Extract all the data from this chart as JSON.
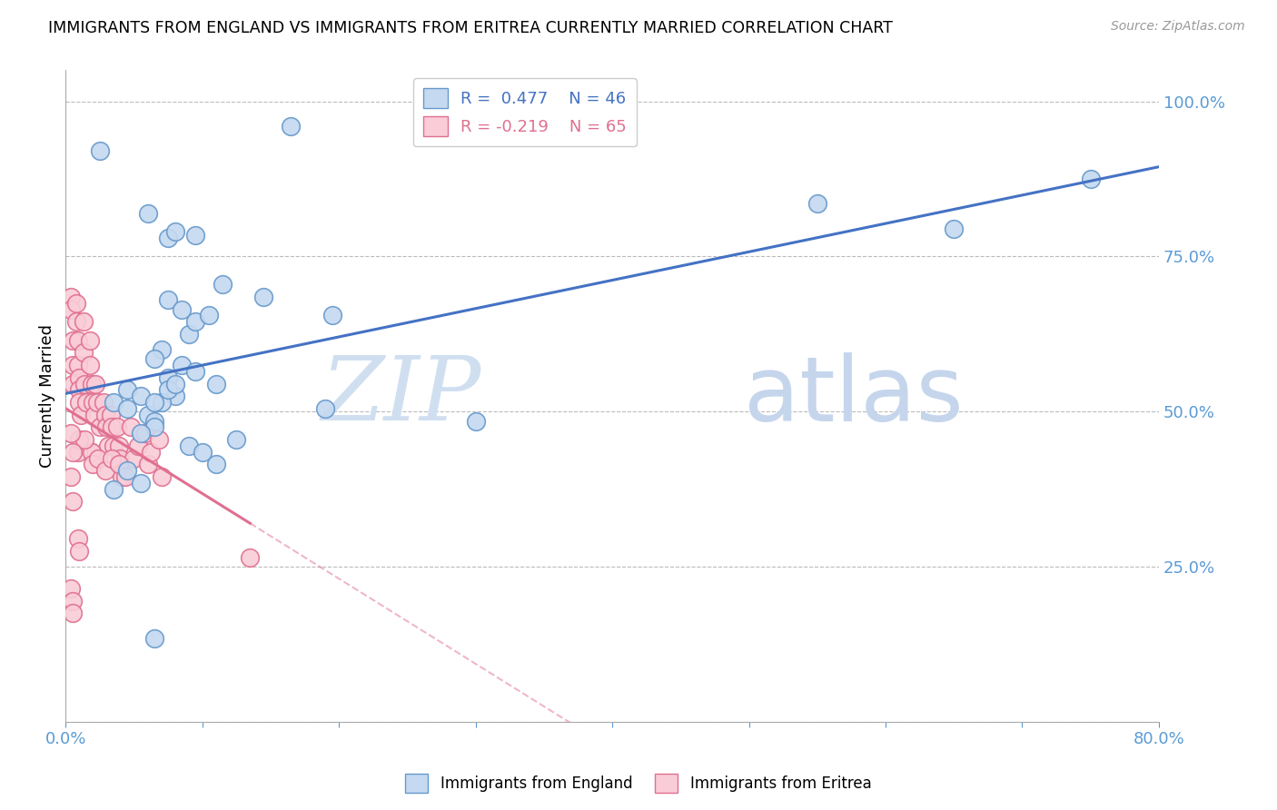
{
  "title": "IMMIGRANTS FROM ENGLAND VS IMMIGRANTS FROM ERITREA CURRENTLY MARRIED CORRELATION CHART",
  "source": "Source: ZipAtlas.com",
  "ylabel": "Currently Married",
  "y_ticks": [
    0.0,
    0.25,
    0.5,
    0.75,
    1.0
  ],
  "y_tick_labels": [
    "",
    "25.0%",
    "50.0%",
    "75.0%",
    "100.0%"
  ],
  "x_min": 0.0,
  "x_max": 0.8,
  "y_min": 0.0,
  "y_max": 1.05,
  "england_color": "#c5d9f0",
  "england_edge_color": "#6699cc",
  "eritrea_color": "#f9ccd8",
  "eritrea_edge_color": "#e07090",
  "england_line_color": "#4472C4",
  "eritrea_line_color": "#e07090",
  "legend_R_england": "R =  0.477",
  "legend_N_england": "N = 46",
  "legend_R_eritrea": "R = -0.219",
  "legend_N_eritrea": "N = 65",
  "axis_color": "#5b9bd5",
  "grid_color": "#bbbbbb",
  "england_scatter_x": [
    0.025,
    0.06,
    0.165,
    0.075,
    0.08,
    0.095,
    0.075,
    0.085,
    0.07,
    0.065,
    0.09,
    0.095,
    0.105,
    0.115,
    0.075,
    0.085,
    0.095,
    0.11,
    0.145,
    0.195,
    0.045,
    0.055,
    0.035,
    0.045,
    0.06,
    0.065,
    0.08,
    0.07,
    0.065,
    0.055,
    0.09,
    0.1,
    0.11,
    0.125,
    0.3,
    0.55,
    0.65,
    0.75,
    0.055,
    0.035,
    0.045,
    0.065,
    0.075,
    0.08,
    0.19,
    0.065
  ],
  "england_scatter_y": [
    0.92,
    0.82,
    0.96,
    0.78,
    0.79,
    0.785,
    0.68,
    0.665,
    0.6,
    0.585,
    0.625,
    0.645,
    0.655,
    0.705,
    0.555,
    0.575,
    0.565,
    0.545,
    0.685,
    0.655,
    0.535,
    0.525,
    0.515,
    0.505,
    0.495,
    0.485,
    0.525,
    0.515,
    0.475,
    0.465,
    0.445,
    0.435,
    0.415,
    0.455,
    0.485,
    0.835,
    0.795,
    0.875,
    0.385,
    0.375,
    0.405,
    0.515,
    0.535,
    0.545,
    0.505,
    0.135
  ],
  "eritrea_scatter_x": [
    0.004,
    0.004,
    0.005,
    0.005,
    0.005,
    0.008,
    0.008,
    0.009,
    0.009,
    0.01,
    0.01,
    0.01,
    0.011,
    0.013,
    0.013,
    0.014,
    0.015,
    0.018,
    0.018,
    0.019,
    0.02,
    0.021,
    0.022,
    0.023,
    0.025,
    0.028,
    0.029,
    0.03,
    0.031,
    0.033,
    0.034,
    0.035,
    0.038,
    0.039,
    0.04,
    0.041,
    0.048,
    0.05,
    0.053,
    0.058,
    0.06,
    0.062,
    0.068,
    0.07,
    0.019,
    0.009,
    0.01,
    0.019,
    0.014,
    0.02,
    0.024,
    0.029,
    0.034,
    0.039,
    0.044,
    0.009,
    0.01,
    0.004,
    0.005,
    0.005,
    0.135,
    0.004,
    0.005,
    0.004,
    0.005
  ],
  "eritrea_scatter_y": [
    0.685,
    0.665,
    0.615,
    0.575,
    0.545,
    0.675,
    0.645,
    0.615,
    0.575,
    0.555,
    0.535,
    0.515,
    0.495,
    0.645,
    0.595,
    0.545,
    0.515,
    0.615,
    0.575,
    0.545,
    0.515,
    0.495,
    0.545,
    0.515,
    0.475,
    0.515,
    0.495,
    0.475,
    0.445,
    0.495,
    0.475,
    0.445,
    0.475,
    0.445,
    0.425,
    0.395,
    0.475,
    0.425,
    0.445,
    0.465,
    0.415,
    0.435,
    0.455,
    0.395,
    0.435,
    0.435,
    0.455,
    0.435,
    0.455,
    0.415,
    0.425,
    0.405,
    0.425,
    0.415,
    0.395,
    0.295,
    0.275,
    0.215,
    0.195,
    0.175,
    0.265,
    0.465,
    0.435,
    0.395,
    0.355
  ]
}
